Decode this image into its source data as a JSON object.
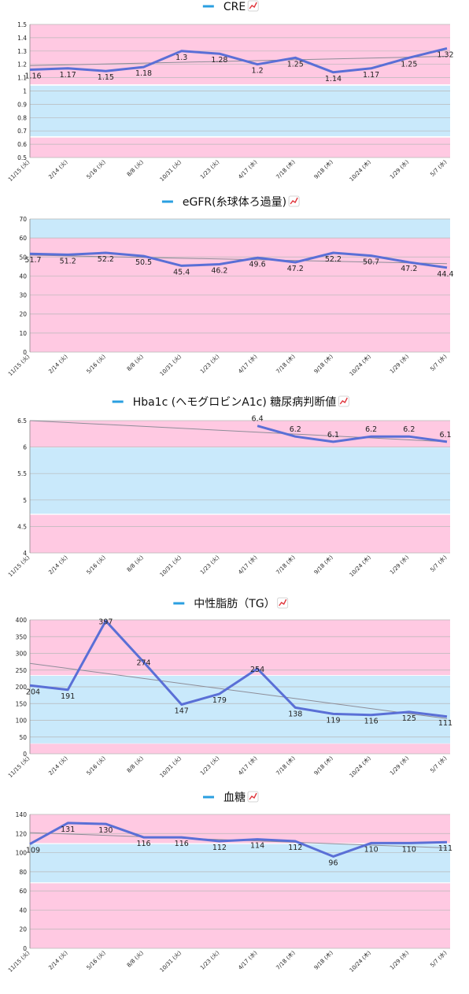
{
  "chart_data": [
    {
      "type": "line",
      "title": "CRE",
      "title_icon": "chart-increasing-icon",
      "categories": [
        "11/15 (火)",
        "2/14 (火)",
        "5/16 (火)",
        "8/8 (火)",
        "10/31 (火)",
        "1/23 (火)",
        "4/17 (水)",
        "7/18 (木)",
        "9/18 (木)",
        "10/24 (木)",
        "1/29 (水)",
        "5/7 (水)"
      ],
      "series": [
        {
          "name": "CRE",
          "values": [
            1.16,
            1.17,
            1.15,
            1.18,
            1.3,
            1.28,
            1.2,
            1.25,
            1.14,
            1.17,
            1.25,
            1.32
          ]
        }
      ],
      "labels": [
        "1.16",
        "1.17",
        "1.15",
        "1.18",
        "1.3",
        "1.28",
        "1.2",
        "1.25",
        "1.14",
        "1.17",
        "1.25",
        "1.32"
      ],
      "ylim": [
        0.5,
        1.5
      ],
      "yticks": [
        0.5,
        0.6,
        0.7,
        0.8,
        0.9,
        1,
        1.1,
        1.2,
        1.3,
        1.4,
        1.5
      ],
      "ytick_labels": [
        "0.5",
        "0.6",
        "0.7",
        "0.8",
        "0.9",
        "1",
        "1.1",
        "1.2",
        "1.3",
        "1.4",
        "1.5"
      ],
      "bands": [
        {
          "from": 1.05,
          "to": 1.5,
          "color": "#ffc9e2"
        },
        {
          "from": 0.66,
          "to": 1.04,
          "color": "#c9e9fb"
        },
        {
          "from": 0.5,
          "to": 0.65,
          "color": "#ffc9e2"
        }
      ],
      "trendline": [
        1.19,
        1.26
      ],
      "legend_position": "top",
      "grid": true
    },
    {
      "type": "line",
      "title": "eGFR(糸球体ろ過量)",
      "title_icon": "chart-increasing-icon",
      "categories": [
        "11/15 (火)",
        "2/14 (火)",
        "5/16 (火)",
        "8/8 (火)",
        "10/31 (火)",
        "1/23 (火)",
        "4/17 (水)",
        "7/18 (木)",
        "9/18 (木)",
        "10/24 (木)",
        "1/29 (水)",
        "5/7 (水)"
      ],
      "series": [
        {
          "name": "eGFR(糸球体ろ過量)",
          "values": [
            51.7,
            51.2,
            52.2,
            50.5,
            45.4,
            46.2,
            49.6,
            47.2,
            52.2,
            50.7,
            47.2,
            44.4
          ]
        }
      ],
      "labels": [
        "51.7",
        "51.2",
        "52.2",
        "50.5",
        "45.4",
        "46.2",
        "49.6",
        "47.2",
        "52.2",
        "50.7",
        "47.2",
        "44.4"
      ],
      "ylim": [
        0,
        70
      ],
      "yticks": [
        0,
        10,
        20,
        30,
        40,
        50,
        60,
        70
      ],
      "ytick_labels": [
        "0",
        "10",
        "20",
        "30",
        "40",
        "50",
        "60",
        "70"
      ],
      "bands": [
        {
          "from": 60,
          "to": 70,
          "color": "#c9e9fb"
        },
        {
          "from": 0,
          "to": 60,
          "color": "#ffc9e2"
        }
      ],
      "trendline": [
        51.0,
        46.5
      ],
      "legend_position": "top",
      "grid": true
    },
    {
      "type": "line",
      "title": "Hba1c (ヘモグロビンA1c) 糖尿病判断値",
      "title_icon": "chart-increasing-icon",
      "categories": [
        "11/15 (火)",
        "2/14 (火)",
        "5/16 (火)",
        "8/8 (火)",
        "10/31 (火)",
        "1/23 (火)",
        "4/17 (水)",
        "7/18 (木)",
        "9/18 (木)",
        "10/24 (木)",
        "1/29 (水)",
        "5/7 (水)"
      ],
      "series": [
        {
          "name": "Hba1c (ヘモグロビンA1c) 糖尿病判断値",
          "values": [
            null,
            null,
            null,
            null,
            null,
            null,
            6.4,
            6.2,
            6.1,
            6.2,
            6.2,
            6.1
          ]
        }
      ],
      "labels": [
        "",
        "",
        "",
        "",
        "",
        "",
        "6.4",
        "6.2",
        "6.1",
        "6.2",
        "6.2",
        "6.1"
      ],
      "ylim": [
        4,
        6.5
      ],
      "yticks": [
        4,
        4.5,
        5,
        5.5,
        6,
        6.5
      ],
      "ytick_labels": [
        "4",
        "4.5",
        "5",
        "5.5",
        "6",
        "6.5"
      ],
      "bands": [
        {
          "from": 6.0,
          "to": 6.5,
          "color": "#ffc9e2"
        },
        {
          "from": 4.74,
          "to": 5.99,
          "color": "#c9e9fb"
        },
        {
          "from": 4.0,
          "to": 4.72,
          "color": "#ffc9e2"
        }
      ],
      "trendline": [
        6.5,
        6.1
      ],
      "legend_position": "top",
      "grid": true
    },
    {
      "type": "line",
      "title": "中性脂肪（TG）",
      "title_icon": "chart-increasing-icon",
      "categories": [
        "11/15 (火)",
        "2/14 (火)",
        "5/16 (火)",
        "8/8 (火)",
        "10/31 (火)",
        "1/23 (火)",
        "4/17 (水)",
        "7/18 (木)",
        "9/18 (木)",
        "10/24 (木)",
        "1/29 (水)",
        "5/7 (水)"
      ],
      "series": [
        {
          "name": "中性脂肪（TG）",
          "values": [
            204,
            191,
            397,
            274,
            147,
            179,
            254,
            138,
            119,
            116,
            125,
            111
          ]
        }
      ],
      "labels": [
        "204",
        "191",
        "397",
        "274",
        "147",
        "179",
        "254",
        "138",
        "119",
        "116",
        "125",
        "111"
      ],
      "ylim": [
        0,
        400
      ],
      "yticks": [
        0,
        50,
        100,
        150,
        200,
        250,
        300,
        350,
        400
      ],
      "ytick_labels": [
        "0",
        "50",
        "100",
        "150",
        "200",
        "250",
        "300",
        "350",
        "400"
      ],
      "bands": [
        {
          "from": 235,
          "to": 400,
          "color": "#ffc9e2"
        },
        {
          "from": 31,
          "to": 233,
          "color": "#c9e9fb"
        },
        {
          "from": 0,
          "to": 30,
          "color": "#ffc9e2"
        }
      ],
      "trendline": [
        270,
        105
      ],
      "legend_position": "top",
      "grid": true
    },
    {
      "type": "line",
      "title": "血糖",
      "title_icon": "chart-increasing-icon",
      "categories": [
        "11/15 (火)",
        "2/14 (火)",
        "5/16 (火)",
        "8/8 (火)",
        "10/31 (火)",
        "1/23 (火)",
        "4/17 (水)",
        "7/18 (木)",
        "9/18 (木)",
        "10/24 (木)",
        "1/29 (水)",
        "5/7 (水)"
      ],
      "series": [
        {
          "name": "血糖",
          "values": [
            109,
            131,
            130,
            116,
            116,
            112,
            114,
            112,
            96,
            110,
            110,
            111
          ]
        }
      ],
      "labels": [
        "109",
        "131",
        "130",
        "116",
        "116",
        "112",
        "114",
        "112",
        "96",
        "110",
        "110",
        "111"
      ],
      "ylim": [
        0,
        140
      ],
      "yticks": [
        0,
        20,
        40,
        60,
        80,
        100,
        120,
        140
      ],
      "ytick_labels": [
        "0",
        "20",
        "40",
        "60",
        "80",
        "100",
        "120",
        "140"
      ],
      "bands": [
        {
          "from": 110,
          "to": 140,
          "color": "#ffc9e2"
        },
        {
          "from": 69,
          "to": 109,
          "color": "#c9e9fb"
        },
        {
          "from": 0,
          "to": 68,
          "color": "#ffc9e2"
        }
      ],
      "trendline": [
        121,
        105
      ],
      "legend_position": "top",
      "grid": true
    }
  ]
}
